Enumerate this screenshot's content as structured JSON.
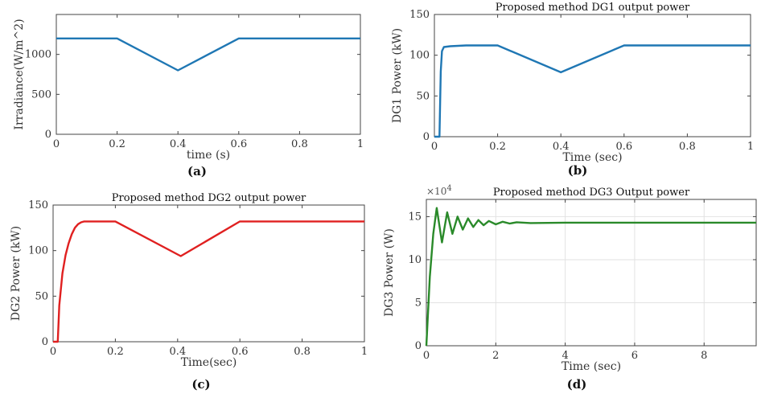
{
  "chart_data": [
    {
      "id": "a",
      "type": "line",
      "title": "",
      "xlabel": "time (s)",
      "ylabel": "Irradiance(W/m^2)",
      "caption": "(a)",
      "xlim": [
        0,
        1
      ],
      "ylim": [
        0,
        1500
      ],
      "xticks": [
        "0",
        "0.2",
        "0.4",
        "0.6",
        "0.8",
        "1"
      ],
      "yticks": [
        "0",
        "500",
        "1000"
      ],
      "grid": false,
      "color": "#1f77b4",
      "series": [
        {
          "x": [
            0,
            0.2,
            0.4,
            0.6,
            1.0
          ],
          "y": [
            1200,
            1200,
            800,
            1200,
            1200
          ]
        }
      ]
    },
    {
      "id": "b",
      "type": "line",
      "title": "Proposed method DG1 output power",
      "xlabel": "Time (sec)",
      "ylabel": "DG1 Power (kW)",
      "caption": "(b)",
      "xlim": [
        0,
        1
      ],
      "ylim": [
        0,
        150
      ],
      "xticks": [
        "0",
        "0.2",
        "0.4",
        "0.6",
        "0.8",
        "1"
      ],
      "yticks": [
        "0",
        "50",
        "100",
        "150"
      ],
      "grid": false,
      "color": "#1f77b4",
      "series": [
        {
          "x": [
            0,
            0.016,
            0.02,
            0.024,
            0.03,
            0.05,
            0.1,
            0.2,
            0.4,
            0.6,
            0.8,
            1.0
          ],
          "y": [
            0,
            0,
            80,
            105,
            110,
            111,
            112,
            112,
            79,
            112,
            112,
            112
          ]
        }
      ]
    },
    {
      "id": "c",
      "type": "line",
      "title": "Proposed method DG2 output power",
      "xlabel": "Time(sec)",
      "ylabel": "DG2 Power (kW)",
      "caption": "(c)",
      "xlim": [
        0,
        1
      ],
      "ylim": [
        0,
        150
      ],
      "xticks": [
        "0",
        "0.2",
        "0.4",
        "0.6",
        "0.8",
        "1"
      ],
      "yticks": [
        "0",
        "50",
        "100",
        "150"
      ],
      "grid": false,
      "color": "#e02020",
      "series": [
        {
          "x": [
            0,
            0.015,
            0.02,
            0.03,
            0.04,
            0.05,
            0.06,
            0.07,
            0.08,
            0.09,
            0.1,
            0.2,
            0.41,
            0.6,
            0.8,
            1.0
          ],
          "y": [
            0,
            0,
            40,
            75,
            95,
            108,
            118,
            125,
            129,
            131,
            132,
            132,
            94,
            132,
            132,
            132
          ]
        }
      ]
    },
    {
      "id": "d",
      "type": "line",
      "title": "Proposed method DG3 Output power",
      "xlabel": "Time (sec)",
      "ylabel": "DG3 Power (W)",
      "caption": "(d)",
      "multiplier": "×10",
      "multiplier_exp": "4",
      "xlim": [
        0,
        9.5
      ],
      "ylim": [
        0,
        17
      ],
      "xticks": [
        "0",
        "2",
        "4",
        "6",
        "8"
      ],
      "yticks": [
        "0",
        "5",
        "10",
        "15"
      ],
      "grid": true,
      "color": "#2a8a2a",
      "series": [
        {
          "x": [
            0,
            0.1,
            0.2,
            0.3,
            0.45,
            0.6,
            0.75,
            0.9,
            1.05,
            1.2,
            1.35,
            1.5,
            1.65,
            1.8,
            2.0,
            2.2,
            2.4,
            2.6,
            3.0,
            4,
            6,
            8,
            9.5
          ],
          "y": [
            0,
            8,
            13,
            16,
            12,
            15.5,
            13,
            15,
            13.5,
            14.8,
            13.8,
            14.6,
            14.0,
            14.5,
            14.1,
            14.4,
            14.2,
            14.35,
            14.25,
            14.3,
            14.3,
            14.3,
            14.3
          ]
        }
      ]
    }
  ]
}
